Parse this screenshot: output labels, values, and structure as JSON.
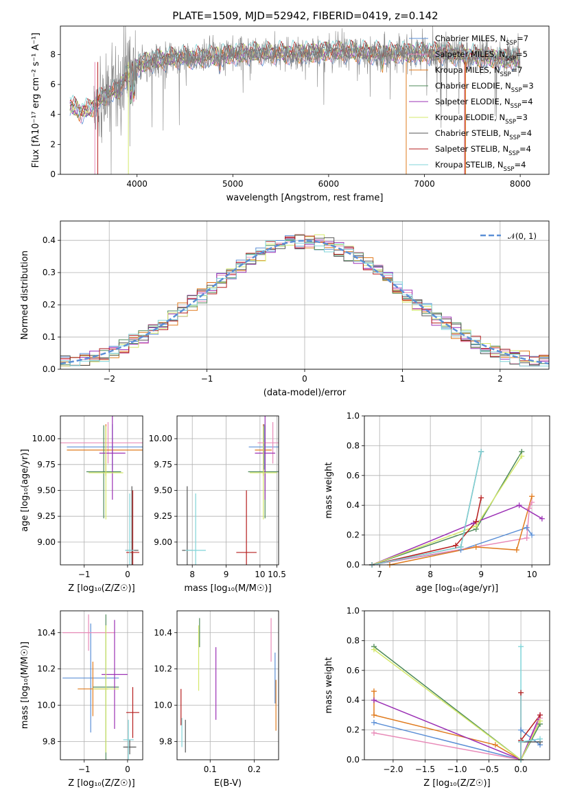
{
  "figure": {
    "title": "PLATE=1509, MJD=52942, FIBERID=0419, z=0.142"
  },
  "chart_data": [
    {
      "id": "spectrum",
      "type": "line",
      "xlabel": "wavelength [Angstrom, rest frame]",
      "ylabel": "Flux [fλ10⁻¹⁷ erg cm⁻² s⁻¹ A⁻¹]",
      "xlim": [
        3200,
        8300
      ],
      "ylim": [
        0,
        9.9
      ],
      "xticks": [
        4000,
        5000,
        6000,
        7000,
        8000
      ],
      "yticks": [
        0,
        2,
        4,
        6,
        8
      ],
      "grid": false,
      "legend_position": "upper-right",
      "data_color": "#808080",
      "models": [
        {
          "name": "Chabrier MILES, N",
          "sub": "SSP",
          "count": "=7",
          "color": "#5b8fd6"
        },
        {
          "name": "Salpeter MILES, N",
          "sub": "SSP",
          "count": "=5",
          "color": "#e88ab8"
        },
        {
          "name": "Kroupa MILES, N",
          "sub": "SSP",
          "count": "=7",
          "color": "#e07b1e"
        },
        {
          "name": "Chabrier ELODIE, N",
          "sub": "SSP",
          "count": "=3",
          "color": "#4e8a5a"
        },
        {
          "name": "Salpeter ELODIE, N",
          "sub": "SSP",
          "count": "=4",
          "color": "#9b30b5"
        },
        {
          "name": "Kroupa ELODIE, N",
          "sub": "SSP",
          "count": "=3",
          "color": "#d4e86a"
        },
        {
          "name": "Chabrier STELIB, N",
          "sub": "SSP",
          "count": "=4",
          "color": "#555555"
        },
        {
          "name": "Salpeter STELIB, N",
          "sub": "SSP",
          "count": "=4",
          "color": "#b51c1c"
        },
        {
          "name": "Kroupa STELIB, N",
          "sub": "SSP",
          "count": "=4",
          "color": "#7fd4d8"
        }
      ],
      "continuum": [
        [
          3300,
          4.6
        ],
        [
          3400,
          4.2
        ],
        [
          3500,
          4.3
        ],
        [
          3600,
          4.9
        ],
        [
          3700,
          5.4
        ],
        [
          3800,
          5.6
        ],
        [
          3900,
          6.6
        ],
        [
          4000,
          7.2
        ],
        [
          4100,
          7.5
        ],
        [
          4200,
          7.6
        ],
        [
          4400,
          7.8
        ],
        [
          4600,
          7.8
        ],
        [
          4800,
          7.9
        ],
        [
          5000,
          8.0
        ],
        [
          5200,
          8.1
        ],
        [
          5500,
          8.1
        ],
        [
          5800,
          8.1
        ],
        [
          6000,
          8.2
        ],
        [
          6200,
          8.2
        ],
        [
          6500,
          8.1
        ],
        [
          6800,
          8.1
        ],
        [
          7000,
          8.1
        ],
        [
          7200,
          8.1
        ],
        [
          7500,
          7.9
        ],
        [
          7800,
          7.7
        ],
        [
          8000,
          7.7
        ]
      ]
    },
    {
      "id": "residual-hist",
      "type": "line",
      "xlabel": "(data-model)/error",
      "ylabel": "Normed distribution",
      "xlim": [
        -2.5,
        2.5
      ],
      "ylim": [
        0,
        0.46
      ],
      "xticks": [
        -2,
        -1,
        0,
        1,
        2
      ],
      "yticks": [
        0.0,
        0.1,
        0.2,
        0.3,
        0.4
      ],
      "grid": true,
      "legend_position": "upper-right",
      "reference_label": "𝒩(0, 1)",
      "reference_color": "#5b8fd6",
      "bin_width": 0.1
    },
    {
      "id": "age-vs-Z",
      "type": "scatter",
      "xlabel": "Z [log₁₀(Z/Z☉)]",
      "ylabel": "age  [log₁₀(age/yr)]",
      "xlim": [
        -1.55,
        0.35
      ],
      "ylim": [
        8.78,
        10.22
      ],
      "xticks": [
        -1,
        0
      ],
      "yticks": [
        9.0,
        9.25,
        9.5,
        9.75,
        10.0
      ],
      "grid": true,
      "points": [
        {
          "x": -0.35,
          "xerr": 1.05,
          "y": 9.92,
          "yerr": 0.22,
          "color": "#5b8fd6"
        },
        {
          "x": -0.45,
          "xerr": 1.1,
          "y": 9.96,
          "yerr": 0.2,
          "color": "#e88ab8"
        },
        {
          "x": -0.5,
          "xerr": 0.9,
          "y": 9.89,
          "yerr": 0.25,
          "color": "#e07b1e"
        },
        {
          "x": -0.55,
          "xerr": 0.4,
          "y": 9.68,
          "yerr": 0.45,
          "color": "#4e8a5a"
        },
        {
          "x": -0.35,
          "xerr": 0.3,
          "y": 9.86,
          "yerr": 0.45,
          "color": "#9b30b5"
        },
        {
          "x": -0.5,
          "xerr": 0.4,
          "y": 9.67,
          "yerr": 0.45,
          "color": "#d4e86a"
        },
        {
          "x": 0.1,
          "xerr": 0.15,
          "y": 8.92,
          "yerr": 0.62,
          "color": "#555555"
        },
        {
          "x": 0.12,
          "xerr": 0.15,
          "y": 8.9,
          "yerr": 0.6,
          "color": "#b51c1c"
        },
        {
          "x": 0.05,
          "xerr": 0.1,
          "y": 8.92,
          "yerr": 0.55,
          "color": "#7fd4d8"
        }
      ]
    },
    {
      "id": "age-vs-mass",
      "type": "scatter",
      "xlabel": "mass [log₁₀(M/M☉)]",
      "ylabel": "",
      "xlim": [
        7.55,
        10.55
      ],
      "ylim": [
        8.78,
        10.22
      ],
      "xticks": [
        8.0,
        9.0,
        10.0,
        10.5
      ],
      "xtick_labels": [
        "8",
        "9",
        "10",
        "10.5"
      ],
      "yticks": [
        9.0,
        9.25,
        9.5,
        9.75,
        10.0
      ],
      "grid": true,
      "points": [
        {
          "x": 10.12,
          "xerr": 0.45,
          "y": 9.92,
          "yerr": 0.22,
          "color": "#5b8fd6"
        },
        {
          "x": 10.38,
          "xerr": 0.45,
          "y": 9.96,
          "yerr": 0.2,
          "color": "#e88ab8"
        },
        {
          "x": 10.1,
          "xerr": 0.25,
          "y": 9.89,
          "yerr": 0.25,
          "color": "#e07b1e"
        },
        {
          "x": 10.15,
          "xerr": 0.5,
          "y": 9.68,
          "yerr": 0.45,
          "color": "#4e8a5a"
        },
        {
          "x": 10.15,
          "xerr": 0.3,
          "y": 9.86,
          "yerr": 0.45,
          "color": "#9b30b5"
        },
        {
          "x": 10.1,
          "xerr": 0.4,
          "y": 9.67,
          "yerr": 0.45,
          "color": "#d4e86a"
        },
        {
          "x": 7.85,
          "xerr": 0.15,
          "y": 8.92,
          "yerr": 0.62,
          "color": "#555555"
        },
        {
          "x": 9.6,
          "xerr": 0.3,
          "y": 8.9,
          "yerr": 0.6,
          "color": "#b51c1c"
        },
        {
          "x": 8.1,
          "xerr": 0.3,
          "y": 8.92,
          "yerr": 0.55,
          "color": "#7fd4d8"
        }
      ]
    },
    {
      "id": "weight-vs-age",
      "type": "line",
      "xlabel": "age  [log₁₀(age/yr)]",
      "ylabel": "mass weight",
      "xlim": [
        6.7,
        10.35
      ],
      "ylim": [
        0,
        1.0
      ],
      "xticks": [
        7,
        8,
        9,
        10
      ],
      "yticks": [
        0.0,
        0.2,
        0.4,
        0.6,
        0.8,
        1.0
      ],
      "grid": true,
      "series": [
        {
          "color": "#5b8fd6",
          "points": [
            [
              6.85,
              0.0
            ],
            [
              8.6,
              0.1
            ],
            [
              9.9,
              0.25
            ],
            [
              10.0,
              0.2
            ]
          ]
        },
        {
          "color": "#e88ab8",
          "points": [
            [
              6.85,
              0.0
            ],
            [
              9.9,
              0.18
            ],
            [
              9.95,
              0.38
            ],
            [
              10.0,
              0.42
            ]
          ]
        },
        {
          "color": "#e07b1e",
          "points": [
            [
              7.2,
              0.0
            ],
            [
              8.9,
              0.12
            ],
            [
              9.7,
              0.1
            ],
            [
              10.0,
              0.46
            ]
          ]
        },
        {
          "color": "#4e8a5a",
          "points": [
            [
              6.85,
              0.0
            ],
            [
              8.9,
              0.24
            ],
            [
              9.8,
              0.76
            ]
          ]
        },
        {
          "color": "#9b30b5",
          "points": [
            [
              6.85,
              0.0
            ],
            [
              8.85,
              0.28
            ],
            [
              9.75,
              0.4
            ],
            [
              10.2,
              0.31
            ]
          ]
        },
        {
          "color": "#d4e86a",
          "points": [
            [
              6.85,
              0.0
            ],
            [
              8.9,
              0.26
            ],
            [
              9.8,
              0.73
            ]
          ]
        },
        {
          "color": "#555555",
          "points": [
            [
              6.85,
              0.0
            ],
            [
              8.6,
              0.12
            ],
            [
              9.0,
              0.76
            ]
          ]
        },
        {
          "color": "#b51c1c",
          "points": [
            [
              6.85,
              0.0
            ],
            [
              8.5,
              0.13
            ],
            [
              8.9,
              0.29
            ],
            [
              9.0,
              0.45
            ]
          ]
        },
        {
          "color": "#7fd4d8",
          "points": [
            [
              6.85,
              0.0
            ],
            [
              8.6,
              0.12
            ],
            [
              9.0,
              0.76
            ]
          ]
        }
      ]
    },
    {
      "id": "mass-vs-Z",
      "type": "scatter",
      "xlabel": "Z [log₁₀(Z/Z☉)]",
      "ylabel": "mass [log₁₀(M/M☉)]",
      "xlim": [
        -1.55,
        0.35
      ],
      "ylim": [
        9.7,
        10.52
      ],
      "xticks": [
        -1,
        0
      ],
      "yticks": [
        9.8,
        10.0,
        10.2,
        10.4
      ],
      "grid": true,
      "points": [
        {
          "x": -0.85,
          "xerr": 0.65,
          "y": 10.15,
          "yerr": 0.3,
          "color": "#5b8fd6"
        },
        {
          "x": -0.9,
          "xerr": 0.6,
          "y": 10.4,
          "yerr": 0.1,
          "color": "#e88ab8"
        },
        {
          "x": -0.8,
          "xerr": 0.35,
          "y": 10.09,
          "yerr": 0.15,
          "color": "#e07b1e"
        },
        {
          "x": -0.5,
          "xerr": 0.3,
          "y": 10.1,
          "yerr": 0.4,
          "color": "#4e8a5a"
        },
        {
          "x": -0.3,
          "xerr": 0.3,
          "y": 10.17,
          "yerr": 0.3,
          "color": "#9b30b5"
        },
        {
          "x": -0.5,
          "xerr": 0.3,
          "y": 10.09,
          "yerr": 0.35,
          "color": "#d4e86a"
        },
        {
          "x": 0.05,
          "xerr": 0.15,
          "y": 9.77,
          "yerr": 0.04,
          "color": "#555555"
        },
        {
          "x": 0.12,
          "xerr": 0.15,
          "y": 9.96,
          "yerr": 0.14,
          "color": "#b51c1c"
        },
        {
          "x": 0.02,
          "xerr": 0.12,
          "y": 9.81,
          "yerr": 0.11,
          "color": "#7fd4d8"
        }
      ]
    },
    {
      "id": "mass-vs-ebv",
      "type": "scatter",
      "xlabel": "E(B-V)",
      "ylabel": "",
      "xlim": [
        0.025,
        0.255
      ],
      "ylim": [
        9.7,
        10.52
      ],
      "xticks": [
        0.1,
        0.2
      ],
      "yticks": [
        9.8,
        10.0,
        10.2,
        10.4
      ],
      "grid": true,
      "points": [
        {
          "x": 0.247,
          "xerr": 0.0,
          "y": 10.15,
          "yerr": 0.14,
          "color": "#5b8fd6"
        },
        {
          "x": 0.238,
          "xerr": 0.0,
          "y": 10.36,
          "yerr": 0.12,
          "color": "#e88ab8"
        },
        {
          "x": 0.249,
          "xerr": 0.0,
          "y": 10.0,
          "yerr": 0.14,
          "color": "#e07b1e"
        },
        {
          "x": 0.076,
          "xerr": 0.0,
          "y": 10.4,
          "yerr": 0.08,
          "color": "#4e8a5a"
        },
        {
          "x": 0.113,
          "xerr": 0.0,
          "y": 10.12,
          "yerr": 0.2,
          "color": "#9b30b5"
        },
        {
          "x": 0.074,
          "xerr": 0.0,
          "y": 10.26,
          "yerr": 0.18,
          "color": "#d4e86a"
        },
        {
          "x": 0.044,
          "xerr": 0.0,
          "y": 9.83,
          "yerr": 0.09,
          "color": "#555555"
        },
        {
          "x": 0.034,
          "xerr": 0.0,
          "y": 9.99,
          "yerr": 0.1,
          "color": "#b51c1c"
        },
        {
          "x": 0.036,
          "xerr": 0.0,
          "y": 9.85,
          "yerr": 0.08,
          "color": "#7fd4d8"
        }
      ]
    },
    {
      "id": "weight-vs-Z",
      "type": "line",
      "xlabel": "Z [log₁₀(Z/Z☉)]",
      "ylabel": "mass weight",
      "xlim": [
        -2.45,
        0.45
      ],
      "ylim": [
        0,
        1.0
      ],
      "xticks": [
        -2.0,
        -1.5,
        -1.0,
        -0.5,
        0.0
      ],
      "yticks": [
        0.0,
        0.2,
        0.4,
        0.6,
        0.8,
        1.0
      ],
      "grid": true,
      "series": [
        {
          "color": "#5b8fd6",
          "points": [
            [
              -2.3,
              0.25
            ],
            [
              0.0,
              0.0
            ],
            [
              0.0,
              0.2
            ],
            [
              0.3,
              0.1
            ]
          ]
        },
        {
          "color": "#e88ab8",
          "points": [
            [
              -2.3,
              0.18
            ],
            [
              0.0,
              0.0
            ],
            [
              0.3,
              0.28
            ]
          ]
        },
        {
          "color": "#e07b1e",
          "points": [
            [
              -2.3,
              0.46
            ],
            [
              -2.3,
              0.3
            ],
            [
              -0.4,
              0.1
            ],
            [
              0.0,
              0.0
            ]
          ]
        },
        {
          "color": "#4e8a5a",
          "points": [
            [
              -2.3,
              0.76
            ],
            [
              0.0,
              0.0
            ],
            [
              0.3,
              0.24
            ]
          ]
        },
        {
          "color": "#9b30b5",
          "points": [
            [
              -2.3,
              0.4
            ],
            [
              0.0,
              0.0
            ],
            [
              0.3,
              0.3
            ]
          ]
        },
        {
          "color": "#d4e86a",
          "points": [
            [
              -2.3,
              0.74
            ],
            [
              0.0,
              0.0
            ],
            [
              0.3,
              0.26
            ]
          ]
        },
        {
          "color": "#555555",
          "points": [
            [
              0.0,
              0.0
            ],
            [
              0.0,
              0.12
            ],
            [
              0.3,
              0.12
            ]
          ]
        },
        {
          "color": "#b51c1c",
          "points": [
            [
              0.0,
              0.0
            ],
            [
              0.0,
              0.45
            ],
            [
              0.0,
              0.13
            ],
            [
              0.3,
              0.3
            ]
          ]
        },
        {
          "color": "#7fd4d8",
          "points": [
            [
              0.0,
              0.0
            ],
            [
              0.0,
              0.76
            ],
            [
              0.0,
              0.12
            ],
            [
              0.3,
              0.14
            ]
          ]
        }
      ]
    }
  ]
}
